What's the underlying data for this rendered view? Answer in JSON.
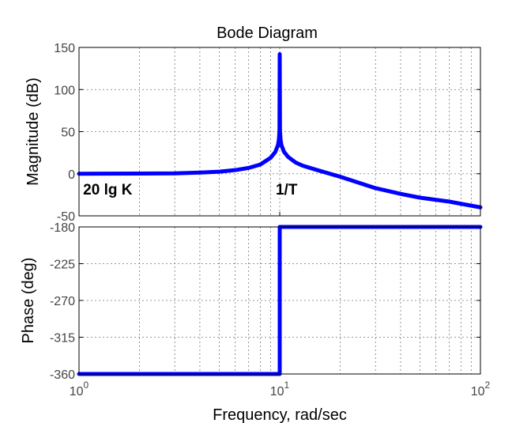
{
  "chart_data": {
    "type": "line",
    "title": "Bode Diagram",
    "xlabel": "Frequency, rad/sec",
    "xscale": "log",
    "xlim": [
      1,
      100
    ],
    "x_ticks": [
      {
        "base": "10",
        "exp": "0",
        "value": 1
      },
      {
        "base": "10",
        "exp": "1",
        "value": 10
      },
      {
        "base": "10",
        "exp": "2",
        "value": 100
      }
    ],
    "grid": true,
    "line_color": "#0000ff",
    "panels": [
      {
        "id": "magnitude",
        "ylabel": "Magnitude (dB)",
        "ylim": [
          -50,
          150
        ],
        "y_ticks": [
          "150",
          "100",
          "50",
          "0",
          "-50"
        ],
        "y_tick_values": [
          150,
          100,
          50,
          0,
          -50
        ],
        "series": [
          {
            "x": [
              1,
              2,
              3,
              4,
              5,
              6,
              7,
              8,
              9,
              9.5,
              9.8,
              9.9,
              9.97,
              10,
              10.03,
              10.1,
              10.2,
              10.5,
              11,
              12,
              13,
              15,
              20,
              30,
              40,
              50,
              70,
              100
            ],
            "y": [
              0,
              0.2,
              0.5,
              1.4,
              2.5,
              4.3,
              6.9,
              10.9,
              18.9,
              25.8,
              34,
              40.1,
              50.5,
              142,
              50.5,
              40.1,
              34,
              26.1,
              20.1,
              13.4,
              9.6,
              5.1,
              -3.5,
              -17.1,
              -23.9,
              -28.4,
              -33.1,
              -39.9
            ]
          }
        ],
        "annotations": [
          {
            "text": "20 lg K",
            "x": 1.02,
            "y": -18
          },
          {
            "text": "1/T",
            "x": 9.3,
            "y": -18
          }
        ]
      },
      {
        "id": "phase",
        "ylabel": "Phase (deg)",
        "ylim": [
          -360,
          -180
        ],
        "y_ticks": [
          "-180",
          "-225",
          "-270",
          "-315",
          "-360"
        ],
        "y_tick_values": [
          -180,
          -225,
          -270,
          -315,
          -360
        ],
        "series": [
          {
            "x": [
              1,
              10,
              10,
              100
            ],
            "y": [
              -360,
              -360,
              -180,
              -180
            ]
          }
        ]
      }
    ]
  }
}
